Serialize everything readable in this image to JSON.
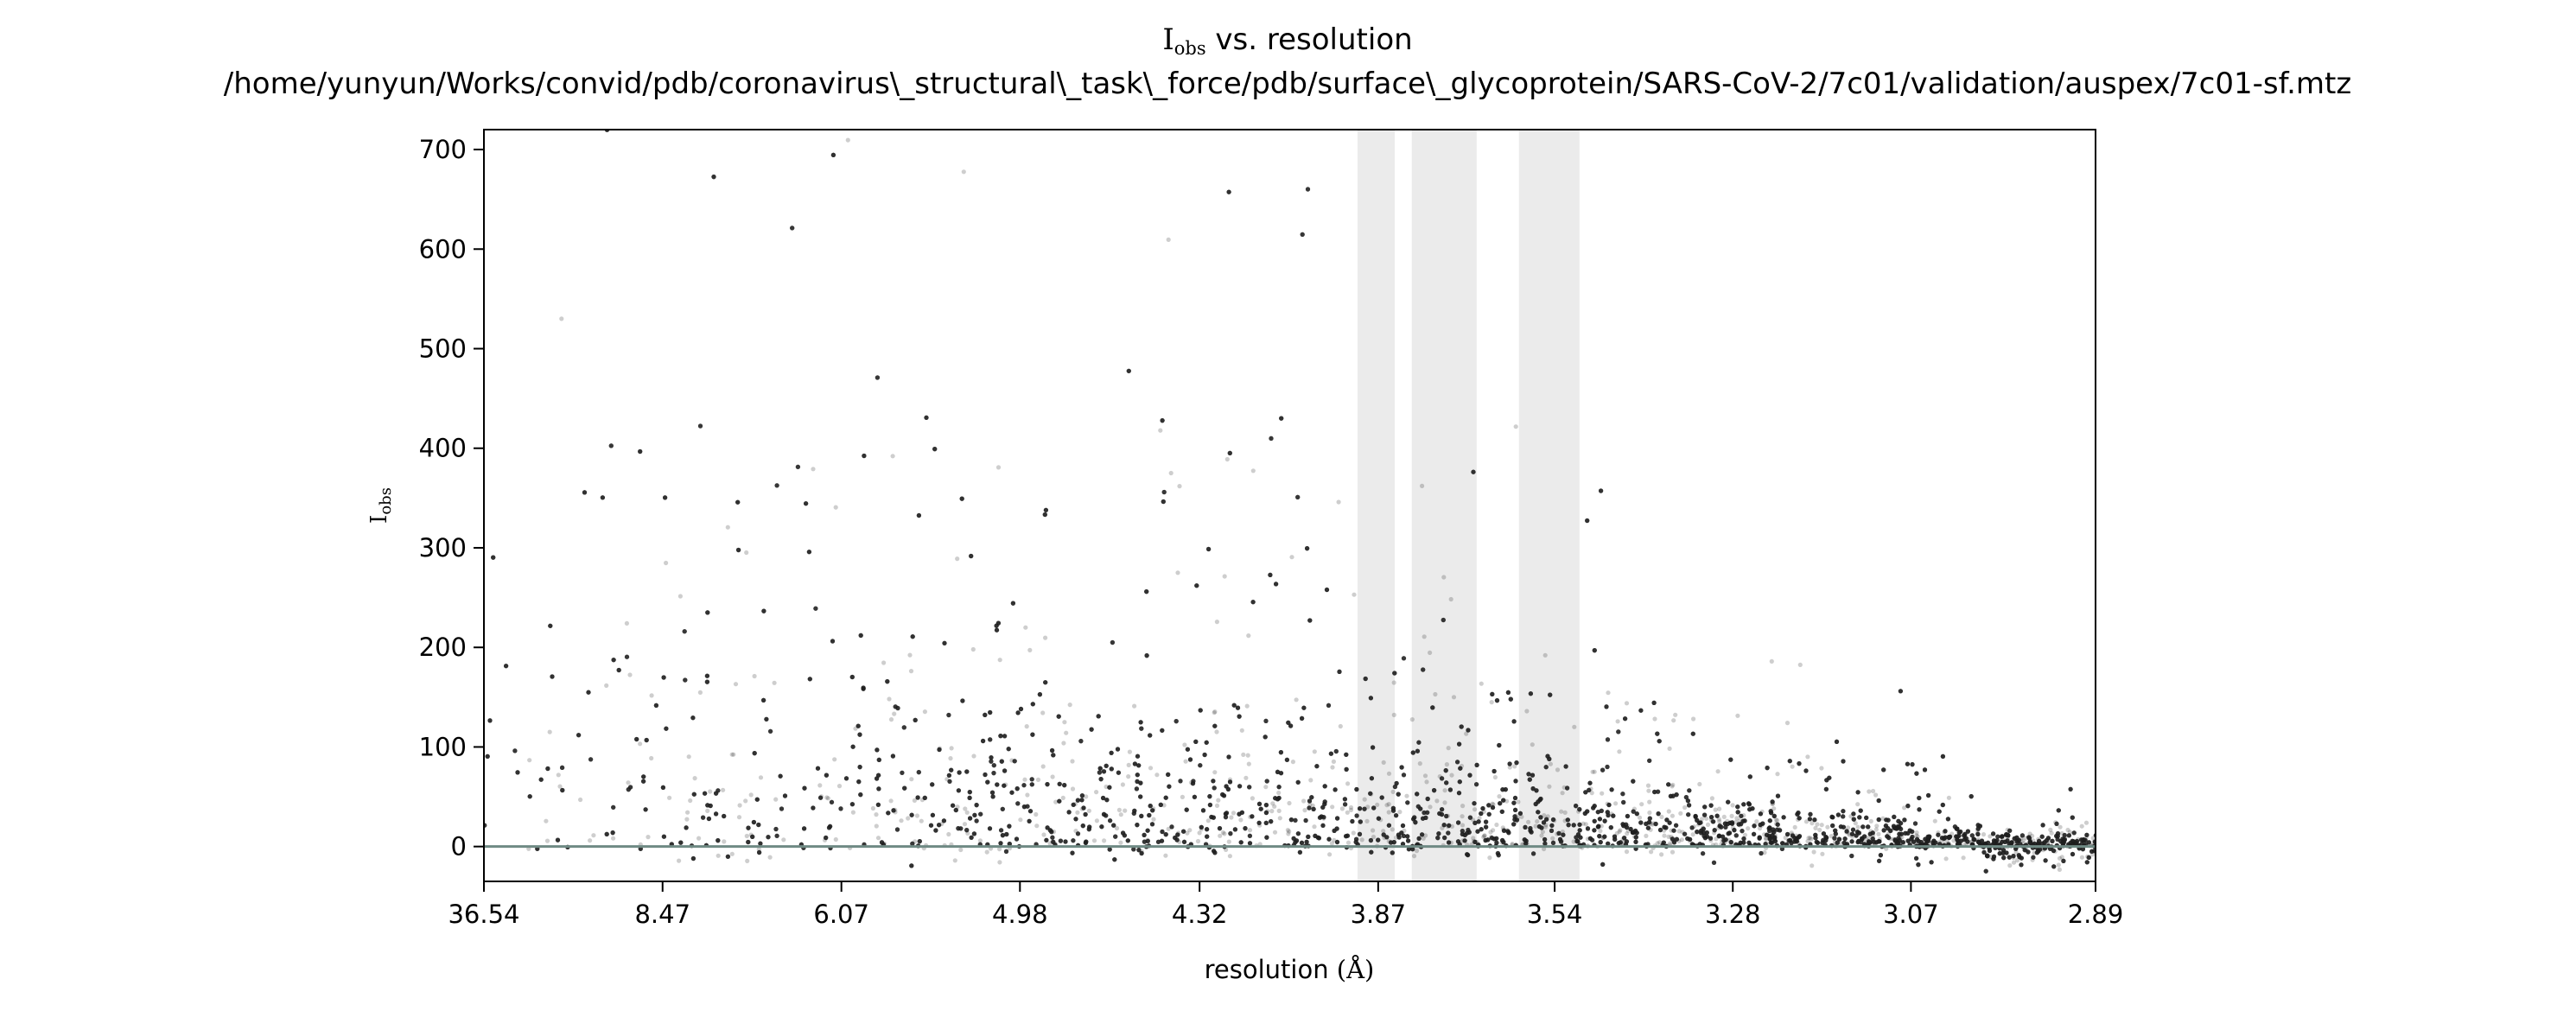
{
  "chart_data": {
    "type": "scatter",
    "title": {
      "symbol": "I",
      "subscript": "obs",
      "rest": " vs. resolution",
      "path": "/home/yunyun/Works/convid/pdb/coronavirus\\_structural\\_task\\_force/pdb/surface\\_glycoprotein/SARS-CoV-2/7c01/validation/auspex/7c01-sf.mtz"
    },
    "xlabel": {
      "text": "resolution ",
      "unit": "(Å)"
    },
    "ylabel": {
      "symbol": "I",
      "subscript": "obs"
    },
    "x_scale": "reciprocal-squared resolution",
    "xlim": [
      36.54,
      2.89
    ],
    "ylim": [
      -35,
      720
    ],
    "x_ticks": [
      "36.54",
      "8.47",
      "6.07",
      "4.98",
      "4.32",
      "3.87",
      "3.54",
      "3.28",
      "3.07",
      "2.89"
    ],
    "y_ticks": [
      "0",
      "100",
      "200",
      "300",
      "400",
      "500",
      "600",
      "700"
    ],
    "ice_ring_bands": [
      [
        3.915,
        3.835
      ],
      [
        3.8,
        3.675
      ],
      [
        3.6,
        3.5
      ]
    ],
    "zero_line_y": 0,
    "point_color": "#222222",
    "band_color": "#ebebeb",
    "zero_line_color": "#6f8a84",
    "grid": false,
    "legend": "none"
  }
}
